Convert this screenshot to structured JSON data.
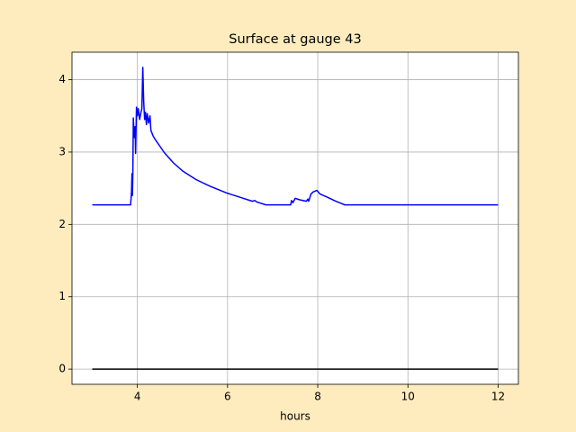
{
  "chart_data": {
    "type": "line",
    "title": "Surface at gauge 43",
    "xlabel": "hours",
    "grid": true,
    "xlim": [
      2.55,
      12.45
    ],
    "ylim": [
      -0.21,
      4.38
    ],
    "xticks": [
      4,
      6,
      8,
      10,
      12
    ],
    "yticks": [
      0,
      1,
      2,
      3,
      4
    ],
    "series": [
      {
        "color": "#0000ff",
        "x": [
          3,
          3.85,
          3.87,
          3.88,
          3.89,
          3.9,
          3.91,
          3.93,
          3.95,
          3.96,
          3.98,
          4.0,
          4.02,
          4.05,
          4.08,
          4.1,
          4.12,
          4.14,
          4.16,
          4.18,
          4.2,
          4.22,
          4.25,
          4.28,
          4.3,
          4.35,
          4.4,
          4.5,
          4.6,
          4.8,
          5.0,
          5.3,
          5.6,
          6.0,
          6.3,
          6.55,
          6.6,
          6.65,
          6.85,
          7.4,
          7.42,
          7.45,
          7.5,
          7.6,
          7.75,
          7.78,
          7.8,
          7.85,
          7.9,
          7.98,
          8.05,
          8.2,
          8.4,
          8.6,
          12
        ],
        "values": [
          2.27,
          2.27,
          2.45,
          2.7,
          2.4,
          2.72,
          3.47,
          3.2,
          3.35,
          2.98,
          3.62,
          3.5,
          3.6,
          3.45,
          3.55,
          3.6,
          4.17,
          3.7,
          3.45,
          3.55,
          3.38,
          3.53,
          3.4,
          3.5,
          3.3,
          3.22,
          3.17,
          3.08,
          2.99,
          2.85,
          2.74,
          2.62,
          2.53,
          2.43,
          2.37,
          2.32,
          2.33,
          2.31,
          2.27,
          2.27,
          2.33,
          2.3,
          2.36,
          2.34,
          2.32,
          2.35,
          2.32,
          2.42,
          2.45,
          2.47,
          2.42,
          2.38,
          2.32,
          2.27,
          2.27
        ]
      },
      {
        "color": "#000000",
        "x": [
          3,
          12
        ],
        "values": [
          0,
          0
        ]
      }
    ]
  }
}
